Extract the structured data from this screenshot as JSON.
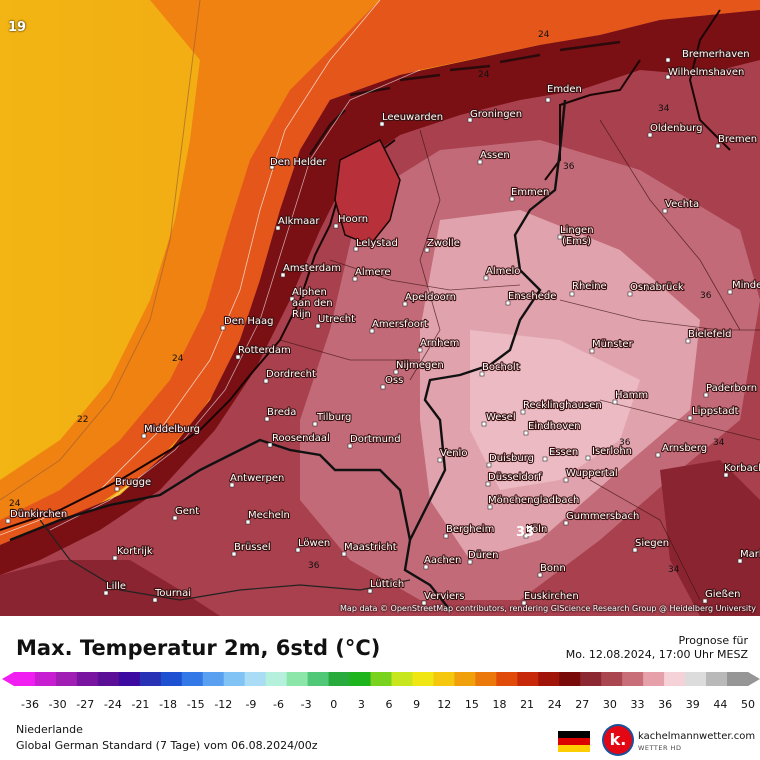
{
  "map": {
    "corner_value": "19",
    "attribution": "Map data © OpenStreetMap contributors, rendering GIScience Research Group @ Heidelberg University",
    "cities": [
      "Bremerhaven",
      "Wilhelmshaven",
      "Emden",
      "Leeuwarden",
      "Groningen",
      "Oldenburg",
      "Bremen",
      "Den Helder",
      "Assen",
      "Emmen",
      "Vechta",
      "Alkmaar",
      "Hoorn",
      "Lelystad",
      "Zwolle",
      "Lingen (Ems)",
      "Amsterdam",
      "Almere",
      "Almelo",
      "Rheine",
      "Osnabrück",
      "Minden",
      "Alphen aan den Rijn",
      "Utrecht",
      "Apeldoorn",
      "Enschede",
      "Den Haag",
      "Amersfoort",
      "Bielefeld",
      "Rotterdam",
      "Arnhem",
      "Münster",
      "Dordrecht",
      "Nijmegen",
      "Bocholt",
      "Oss",
      "Paderborn",
      "Hamm",
      "Breda",
      "Tilburg",
      "Wesel",
      "Recklinghausen",
      "Lippstadt",
      "Middelburg",
      "Roosendaal",
      "Dortmund",
      "Eindhoven",
      "Arnsberg",
      "Venlo",
      "Duisburg",
      "Essen",
      "Iserlohn",
      "Korbach",
      "Brugge",
      "Antwerpen",
      "Düsseldorf",
      "Wuppertal",
      "Mönchengladbach",
      "Dünkirchen",
      "Gent",
      "Mecheln",
      "Gummersbach",
      "Bergheim",
      "Köln",
      "Kortrijk",
      "Brüssel",
      "Löwen",
      "Maastricht",
      "Siegen",
      "Düren",
      "Marburg",
      "Aachen",
      "Bonn",
      "Lille",
      "Tournai",
      "Lüttich",
      "Gießen",
      "Verviers",
      "Euskirchen"
    ],
    "isotherm_labels": [
      "24",
      "24",
      "34",
      "36",
      "36",
      "24",
      "22",
      "24",
      "36",
      "34",
      "34",
      "36",
      "33"
    ]
  },
  "header": {
    "title": "Max. Temperatur 2m, 6std (°C)",
    "forecast_label": "Prognose für",
    "forecast_date": "Mo. 12.08.2024, 17:00 Uhr MESZ"
  },
  "scale": {
    "ticks": [
      "-36",
      "-30",
      "-27",
      "-24",
      "-21",
      "-18",
      "-15",
      "-12",
      "-9",
      "-6",
      "-3",
      "0",
      "3",
      "6",
      "9",
      "12",
      "15",
      "18",
      "21",
      "24",
      "27",
      "30",
      "33",
      "36",
      "39",
      "44",
      "50"
    ],
    "colors": [
      "#f01ef0",
      "#c81ed2",
      "#a01eb4",
      "#7814a0",
      "#5a0f96",
      "#3c0aa0",
      "#2832b4",
      "#1e50d2",
      "#3278e6",
      "#5aa0f0",
      "#82c3f5",
      "#aadcf5",
      "#b4f0dc",
      "#8ce6aa",
      "#50c878",
      "#28aa3c",
      "#1eb41e",
      "#78d21e",
      "#c8e61e",
      "#f0e614",
      "#f5c80f",
      "#f0a00a",
      "#eb780a",
      "#e14b0a",
      "#c8280a",
      "#a0140a",
      "#780a0a",
      "#8c2832",
      "#aa4650",
      "#c86e78",
      "#e6a0aa",
      "#f5d2d7",
      "#dcdcdc",
      "#b9b9b9",
      "#969696"
    ]
  },
  "footer": {
    "region": "Niederlande",
    "model": "Global German Standard (7 Tage) vom  06.08.2024/00z",
    "brand": "kachelmannwetter.com",
    "brand_sub": "WETTER HD",
    "logo_letter": "k."
  },
  "colors": {
    "sea_cool": "#f2b513",
    "sea_mid": "#f07a10",
    "sea_warm": "#e0501a",
    "coast_hot": "#7a0f14",
    "land_mid": "#a8404e",
    "land_warm": "#c26a78",
    "land_pale": "#e6aab4"
  }
}
